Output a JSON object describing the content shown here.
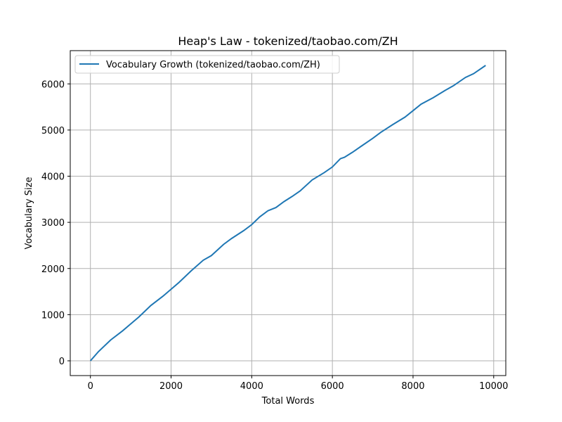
{
  "chart_data": {
    "type": "line",
    "title": "Heap's Law - tokenized/taobao.com/ZH",
    "xlabel": "Total Words",
    "ylabel": "Vocabulary Size",
    "xlim": [
      -500,
      10300
    ],
    "ylim": [
      -320,
      6720
    ],
    "xticks": [
      0,
      2000,
      4000,
      6000,
      8000,
      10000
    ],
    "yticks": [
      0,
      1000,
      2000,
      3000,
      4000,
      5000,
      6000
    ],
    "grid": true,
    "legend_position": "top-left",
    "series": [
      {
        "name": "Vocabulary Growth (tokenized/taobao.com/ZH)",
        "color": "#1f77b4",
        "x": [
          0,
          200,
          500,
          800,
          1000,
          1200,
          1500,
          1800,
          2000,
          2200,
          2500,
          2800,
          3000,
          3300,
          3500,
          3800,
          4000,
          4200,
          4400,
          4600,
          4800,
          5000,
          5200,
          5500,
          5800,
          6000,
          6200,
          6300,
          6500,
          6700,
          7000,
          7200,
          7500,
          7800,
          8000,
          8200,
          8500,
          8800,
          9000,
          9300,
          9500,
          9800
        ],
        "y": [
          0,
          200,
          450,
          650,
          800,
          950,
          1200,
          1400,
          1550,
          1700,
          1950,
          2180,
          2280,
          2520,
          2650,
          2820,
          2950,
          3120,
          3250,
          3320,
          3450,
          3560,
          3680,
          3920,
          4080,
          4200,
          4380,
          4410,
          4520,
          4640,
          4820,
          4950,
          5120,
          5280,
          5420,
          5560,
          5700,
          5860,
          5960,
          6140,
          6220,
          6400
        ]
      }
    ]
  }
}
